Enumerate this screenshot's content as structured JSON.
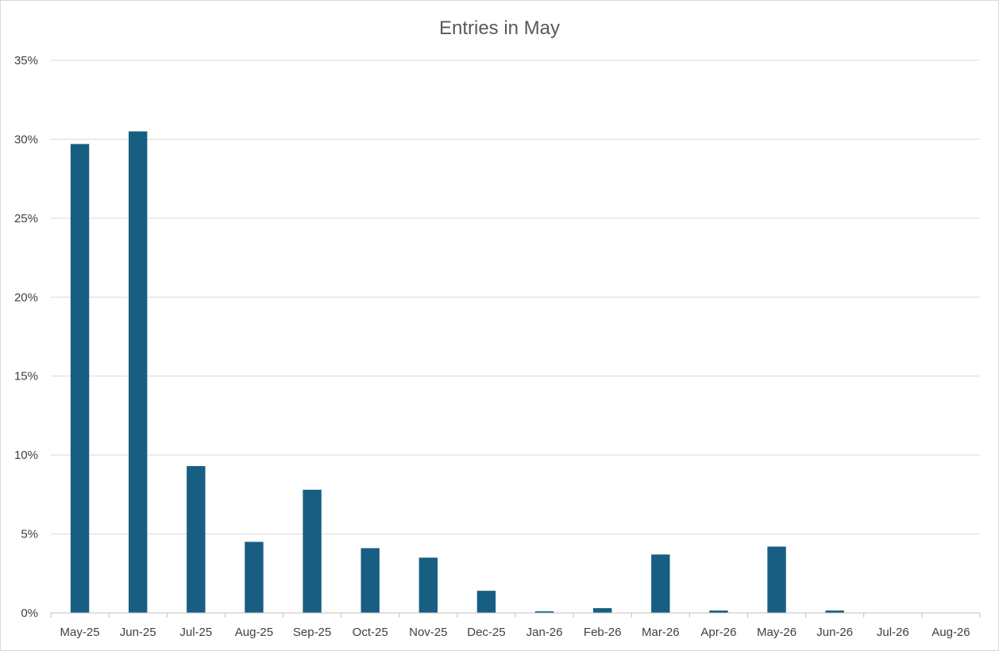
{
  "chart_data": {
    "type": "bar",
    "title": "Entries in May",
    "xlabel": "",
    "ylabel": "",
    "categories": [
      "May-25",
      "Jun-25",
      "Jul-25",
      "Aug-25",
      "Sep-25",
      "Oct-25",
      "Nov-25",
      "Dec-25",
      "Jan-26",
      "Feb-26",
      "Mar-26",
      "Apr-26",
      "May-26",
      "Jun-26",
      "Jul-26",
      "Aug-26"
    ],
    "values": [
      29.7,
      30.5,
      9.3,
      4.5,
      7.8,
      4.1,
      3.5,
      1.4,
      0.1,
      0.3,
      3.7,
      0.15,
      4.2,
      0.15,
      0,
      0
    ],
    "ylim": [
      0,
      35
    ],
    "yticks": [
      0,
      5,
      10,
      15,
      20,
      25,
      30,
      35
    ],
    "ytick_labels": [
      "0%",
      "5%",
      "10%",
      "15%",
      "20%",
      "25%",
      "30%",
      "35%"
    ],
    "grid": true,
    "legend": "none",
    "bar_color": "#175e82"
  }
}
